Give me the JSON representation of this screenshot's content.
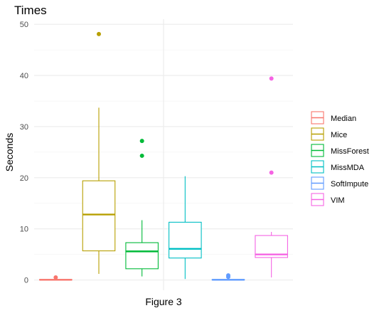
{
  "chart_data": {
    "type": "boxplot",
    "title": "Times",
    "xlabel": "Figure 3",
    "ylabel": "Seconds",
    "ylim": [
      -2,
      51
    ],
    "yticks": [
      0,
      10,
      20,
      30,
      40,
      50
    ],
    "grid": true,
    "legend_position": "right",
    "series": [
      {
        "name": "Median",
        "color": "#F8766D",
        "min": 0,
        "q1": 0,
        "median": 0.05,
        "q3": 0.1,
        "max": 0.2,
        "outliers": [
          0.5
        ]
      },
      {
        "name": "Mice",
        "color": "#B79F00",
        "min": 1.2,
        "q1": 5.7,
        "median": 12.8,
        "q3": 19.4,
        "max": 33.7,
        "outliers": [
          48.1
        ]
      },
      {
        "name": "MissForest",
        "color": "#00BA38",
        "min": 0.7,
        "q1": 2.2,
        "median": 5.6,
        "q3": 7.3,
        "max": 11.7,
        "outliers": [
          24.3,
          27.2
        ]
      },
      {
        "name": "MissMDA",
        "color": "#00BFC4",
        "min": 0.2,
        "q1": 4.3,
        "median": 6.1,
        "q3": 11.3,
        "max": 20.3,
        "outliers": []
      },
      {
        "name": "SoftImpute",
        "color": "#619CFF",
        "min": 0,
        "q1": 0,
        "median": 0.05,
        "q3": 0.1,
        "max": 0.3,
        "outliers": [
          0.6,
          0.9
        ]
      },
      {
        "name": "VIM",
        "color": "#F564E3",
        "min": 0.5,
        "q1": 4.4,
        "median": 5.0,
        "q3": 8.7,
        "max": 9.4,
        "outliers": [
          21.0,
          39.4
        ]
      }
    ]
  }
}
